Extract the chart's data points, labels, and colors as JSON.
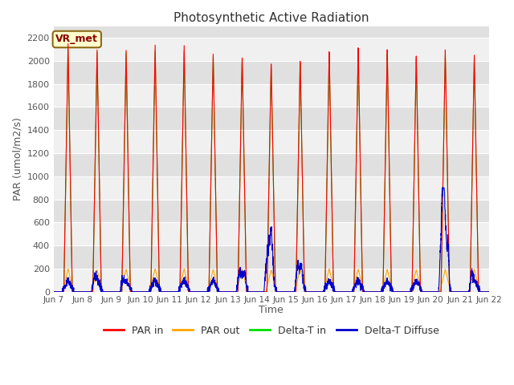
{
  "title": "Photosynthetic Active Radiation",
  "ylabel": "PAR (umol/m2/s)",
  "xlabel": "Time",
  "ylim": [
    0,
    2300
  ],
  "legend_label": "VR_met",
  "series": {
    "PAR_in": {
      "color": "#ff0000",
      "label": "PAR in"
    },
    "PAR_out": {
      "color": "#ffa500",
      "label": "PAR out"
    },
    "Delta_T_in": {
      "color": "#00dd00",
      "label": "Delta-T in"
    },
    "Delta_T_Diffuse": {
      "color": "#0000cc",
      "label": "Delta-T Diffuse"
    }
  },
  "x_ticks": [
    "Jun 7",
    "Jun 8",
    "Jun 9",
    "Jun 10",
    "Jun 11",
    "Jun 12",
    "Jun 13",
    "Jun 14",
    "Jun 15",
    "Jun 16",
    "Jun 17",
    "Jun 18",
    "Jun 19",
    "Jun 20",
    "Jun 21",
    "Jun 22"
  ],
  "x_tick_positions": [
    0,
    24,
    48,
    72,
    96,
    120,
    144,
    168,
    192,
    216,
    240,
    264,
    288,
    312,
    336,
    360
  ],
  "band_colors": [
    "#f0f0f0",
    "#e0e0e0"
  ],
  "grid_color": "#ffffff",
  "bg_color": "#f0f0f0"
}
